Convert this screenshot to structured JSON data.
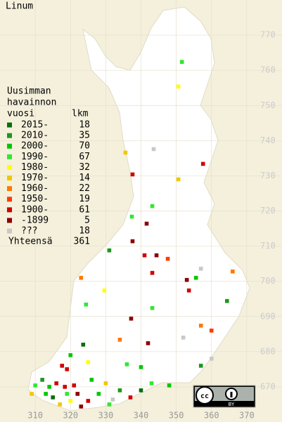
{
  "title": "Linum",
  "legend": {
    "heading": [
      "Uusimman",
      "havainnon",
      "vuosi"
    ],
    "count_heading": "lkm",
    "rows": [
      {
        "label": "2015-",
        "count": 18,
        "color": "#0a6e0a"
      },
      {
        "label": "2010-",
        "count": 35,
        "color": "#1e961e"
      },
      {
        "label": "2000-",
        "count": 70,
        "color": "#00c800"
      },
      {
        "label": "1990-",
        "count": 67,
        "color": "#32e632"
      },
      {
        "label": "1980-",
        "count": 32,
        "color": "#ffff00"
      },
      {
        "label": "1970-",
        "count": 14,
        "color": "#f0c800"
      },
      {
        "label": "1960-",
        "count": 22,
        "color": "#ff7800"
      },
      {
        "label": "1950-",
        "count": 19,
        "color": "#ff3c00"
      },
      {
        "label": "1900-",
        "count": 61,
        "color": "#d20000"
      },
      {
        "label": "-1899",
        "count": 5,
        "color": "#8c0000"
      },
      {
        "label": "???",
        "count": 18,
        "color": "#c8c8c8"
      }
    ],
    "total_label": "Yhteensä",
    "total": 361
  },
  "xlim": [
    300,
    380
  ],
  "ylim": [
    660,
    780
  ],
  "xticks": [
    310,
    320,
    330,
    340,
    350,
    360,
    370
  ],
  "yticks": [
    670,
    680,
    690,
    700,
    710,
    720,
    730,
    740,
    750,
    760,
    770
  ],
  "points": [
    [
      351.6,
      762.4,
      3
    ],
    [
      350.6,
      755.4,
      4
    ],
    [
      343.6,
      737.6,
      10
    ],
    [
      335.6,
      736.6,
      5
    ],
    [
      357.6,
      733.4,
      8
    ],
    [
      337.6,
      730.4,
      8
    ],
    [
      350.6,
      729,
      5
    ],
    [
      343.2,
      721.4,
      3
    ],
    [
      337.4,
      718.4,
      3
    ],
    [
      341.6,
      716.4,
      9
    ],
    [
      337.6,
      711.4,
      9
    ],
    [
      331,
      708.8,
      1
    ],
    [
      341,
      707.4,
      8
    ],
    [
      344.4,
      707.4,
      9
    ],
    [
      347.6,
      706.4,
      7
    ],
    [
      357,
      703.6,
      10
    ],
    [
      366,
      702.8,
      6
    ],
    [
      343.2,
      702.4,
      8
    ],
    [
      353,
      700.4,
      9
    ],
    [
      355.6,
      701,
      2
    ],
    [
      323,
      701,
      6
    ],
    [
      329.6,
      697.4,
      4
    ],
    [
      353.6,
      697.4,
      8
    ],
    [
      364.4,
      694.4,
      1
    ],
    [
      343.2,
      692.4,
      3
    ],
    [
      324.4,
      693.4,
      3
    ],
    [
      337.2,
      689.4,
      9
    ],
    [
      357,
      687.4,
      6
    ],
    [
      360,
      686,
      7
    ],
    [
      342,
      682.4,
      9
    ],
    [
      334,
      683.4,
      6
    ],
    [
      352,
      684,
      10
    ],
    [
      323.6,
      682,
      0
    ],
    [
      320,
      679,
      2
    ],
    [
      325,
      677,
      4
    ],
    [
      336,
      676.4,
      3
    ],
    [
      340,
      675.6,
      2
    ],
    [
      360,
      678,
      10
    ],
    [
      357,
      676,
      1
    ],
    [
      319,
      675,
      8
    ],
    [
      317.6,
      676,
      8
    ],
    [
      312,
      672,
      1
    ],
    [
      310,
      670.4,
      3
    ],
    [
      314,
      670,
      2
    ],
    [
      316,
      671,
      8
    ],
    [
      318.4,
      670,
      8
    ],
    [
      322,
      668,
      9
    ],
    [
      320,
      666,
      4
    ],
    [
      325,
      666,
      8
    ],
    [
      328,
      668,
      2
    ],
    [
      331,
      665,
      3
    ],
    [
      334,
      669,
      1
    ],
    [
      337,
      667,
      8
    ],
    [
      340,
      669,
      0
    ],
    [
      343,
      671,
      3
    ],
    [
      348,
      670.4,
      2
    ],
    [
      309,
      668,
      5
    ],
    [
      317,
      665,
      5
    ],
    [
      323,
      664.4,
      9
    ],
    [
      326,
      672,
      2
    ],
    [
      313,
      668,
      2
    ],
    [
      315,
      667,
      0
    ],
    [
      321,
      670.4,
      8
    ],
    [
      330,
      671,
      5
    ],
    [
      332,
      666.4,
      10
    ],
    [
      319,
      668,
      3
    ]
  ]
}
